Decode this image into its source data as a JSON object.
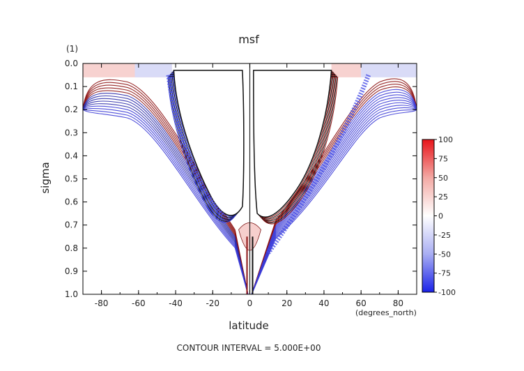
{
  "chart_data": {
    "type": "contour",
    "title": "msf",
    "xlabel": "latitude",
    "xunits": "(degrees_north)",
    "ylabel": "sigma",
    "yunits": "(1)",
    "xlim": [
      -90,
      90
    ],
    "ylim": [
      1.0,
      0.0
    ],
    "x_ticks": [
      "-80",
      "-60",
      "-40",
      "-20",
      "0",
      "20",
      "40",
      "60",
      "80"
    ],
    "x_tick_values": [
      -80,
      -60,
      -40,
      -20,
      0,
      20,
      40,
      60,
      80
    ],
    "y_ticks": [
      "0.0",
      "0.1",
      "0.2",
      "0.3",
      "0.4",
      "0.5",
      "0.6",
      "0.7",
      "0.8",
      "0.9",
      "1.0"
    ],
    "y_tick_values": [
      0.0,
      0.1,
      0.2,
      0.3,
      0.4,
      0.5,
      0.6,
      0.7,
      0.8,
      0.9,
      1.0
    ],
    "contour_interval_text": "CONTOUR INTERVAL = 5.000E+00",
    "colorbar": {
      "ticks": [
        "100",
        "75",
        "50",
        "25",
        "0",
        "-25",
        "-50",
        "-75",
        "-100"
      ],
      "tick_values": [
        100,
        75,
        50,
        25,
        0,
        -25,
        -50,
        -75,
        -100
      ],
      "range": [
        -100,
        100
      ],
      "colors": {
        "max": "#e8141a",
        "pos_mid": "#f3a9a4",
        "zero": "#ffffff",
        "neg_mid": "#a9aef3",
        "min": "#1a22e8"
      }
    },
    "features": [
      {
        "lat_min": -42,
        "lat_max": -3,
        "sigma_top": 0.02,
        "sigma_bottom": 0.67,
        "sign": "negative"
      },
      {
        "lat_min": 2,
        "lat_max": 44,
        "sigma_top": 0.02,
        "sigma_bottom": 0.7,
        "sign": "positive"
      }
    ]
  }
}
